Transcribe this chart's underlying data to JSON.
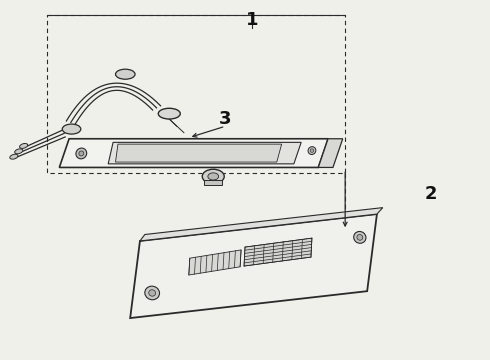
{
  "bg_color": "#f0f0eb",
  "line_color": "#2a2a2a",
  "label_color": "#111111",
  "figsize": [
    4.9,
    3.6
  ],
  "dpi": 100,
  "label_1": [
    0.515,
    0.945
  ],
  "label_2": [
    0.88,
    0.46
  ],
  "label_3": [
    0.46,
    0.67
  ]
}
